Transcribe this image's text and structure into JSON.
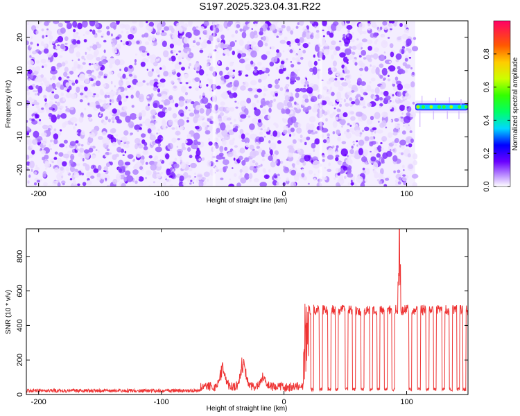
{
  "title": "S197.2025.323.04.31.R22",
  "chart_data": [
    {
      "type": "heatmap",
      "xlabel": "Height of straight line (km)",
      "ylabel": "Frequency (Hz)",
      "xlim": [
        -210,
        150
      ],
      "ylim": [
        -25,
        25
      ],
      "xticks": [
        -200,
        -100,
        0,
        100
      ],
      "yticks": [
        -20,
        -10,
        0,
        10,
        20
      ],
      "noise_region_x": [
        -210,
        107
      ],
      "signal": {
        "x_start": 107,
        "x_end": 150,
        "frequency": -1
      },
      "grid": false
    },
    {
      "type": "line",
      "xlabel": "Height of straight line (km)",
      "ylabel": "SNR (10 * v/v)",
      "xlim": [
        -210,
        150
      ],
      "ylim": [
        0,
        960
      ],
      "xticks": [
        -200,
        -100,
        0,
        100
      ],
      "yticks": [
        0,
        200,
        400,
        600,
        800
      ],
      "grid": false,
      "series": [
        {
          "color": "#ee3333",
          "segments": [
            {
              "x_start": -210,
              "x_end": -68,
              "level": 22,
              "noise": 10
            },
            {
              "x_start": -68,
              "x_end": 16,
              "level": 45,
              "noise": 25
            },
            {
              "x_start": 16,
              "x_end": 150,
              "level": 490,
              "noise": 30
            }
          ],
          "bumps": [
            {
              "x": -50,
              "y": 170
            },
            {
              "x": -33,
              "y": 225
            },
            {
              "x": -17,
              "y": 110
            }
          ],
          "dropouts": [
            23,
            30,
            37,
            43,
            51,
            57,
            64,
            71,
            77,
            83,
            89,
            103,
            110,
            117,
            123,
            130,
            136,
            142,
            147
          ],
          "peak": {
            "x": 94,
            "y": 960
          }
        }
      ]
    }
  ],
  "colorbar": {
    "label": "Normalized spectral amplitude",
    "range": [
      0,
      1
    ],
    "ticks": [
      0.0,
      0.2,
      0.4,
      0.6,
      0.8
    ],
    "tick_labels": [
      "0.0",
      "0.2",
      "0.4",
      "0.6",
      "0.8"
    ]
  }
}
